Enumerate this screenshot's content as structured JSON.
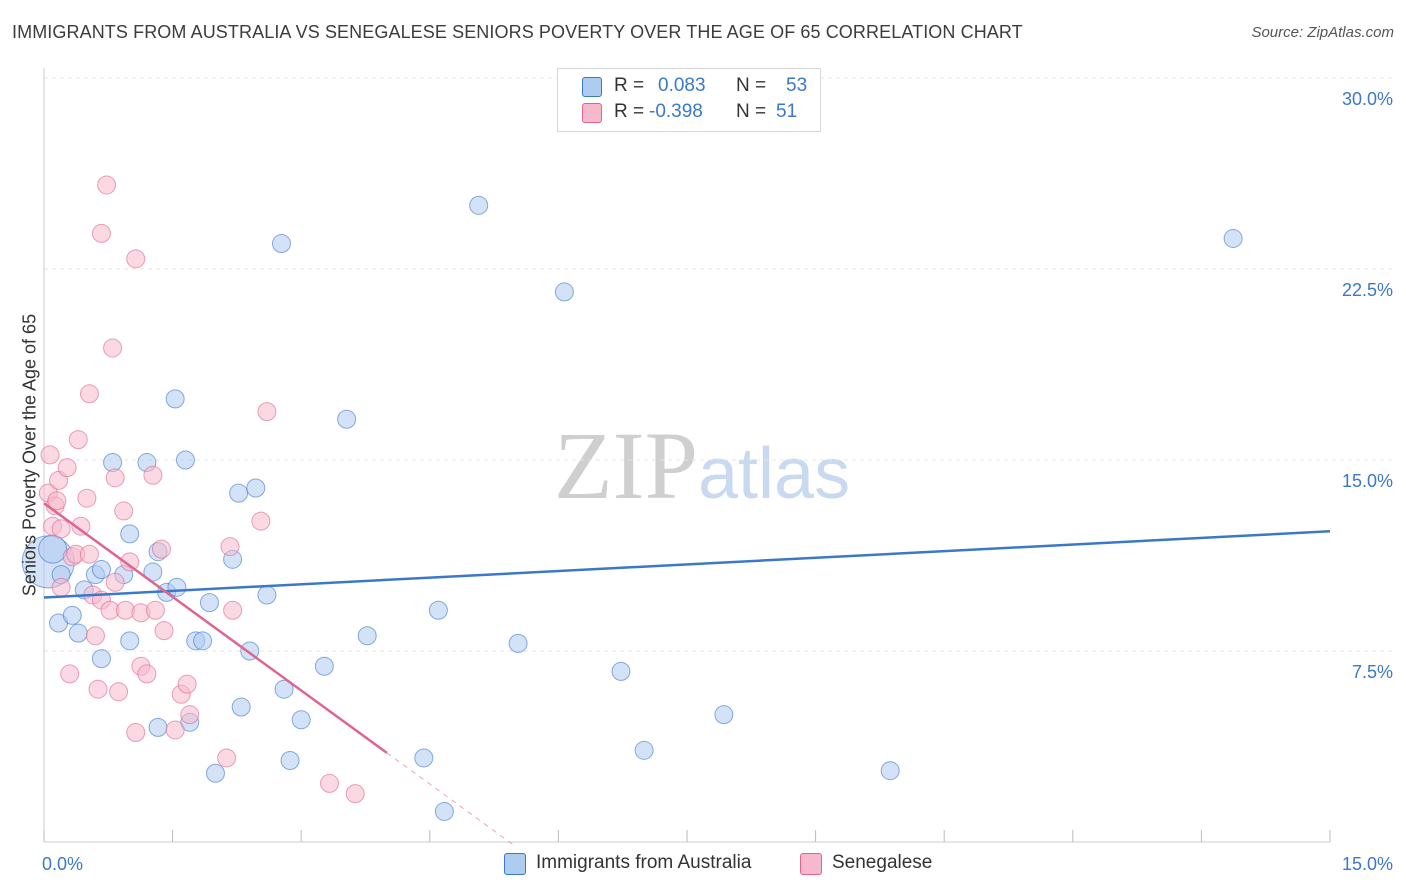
{
  "header": {
    "title": "IMMIGRANTS FROM AUSTRALIA VS SENEGALESE SENIORS POVERTY OVER THE AGE OF 65 CORRELATION CHART",
    "source": "Source: ZipAtlas.com"
  },
  "watermark": {
    "zip": "ZIP",
    "atlas": "atlas"
  },
  "legend": {
    "rows": [
      {
        "r_label": "R =",
        "r_value": "0.083",
        "n_label": "N =",
        "n_value": "53"
      },
      {
        "r_label": "R =",
        "r_value": "-0.398",
        "n_label": "N =",
        "n_value": "51"
      }
    ]
  },
  "chart_data": {
    "type": "scatter",
    "title": "IMMIGRANTS FROM AUSTRALIA VS SENEGALESE SENIORS POVERTY OVER THE AGE OF 65 CORRELATION CHART",
    "xlabel": "",
    "ylabel": "Seniors Poverty Over the Age of 65",
    "xlim": [
      0,
      15
    ],
    "ylim": [
      0,
      30
    ],
    "x_tick_labels": [
      "0.0%",
      "15.0%"
    ],
    "y_ticks": [
      7.5,
      15.0,
      22.5,
      30.0
    ],
    "y_tick_labels": [
      "7.5%",
      "15.0%",
      "22.5%",
      "30.0%"
    ],
    "colors": {
      "blue": "#3b78c9",
      "blue_fill": "#aecbf0",
      "pink": "#e0648f",
      "pink_fill": "#f6b9cc",
      "tick_text": "#3b78c9"
    },
    "series": [
      {
        "name": "Immigrants from Australia",
        "r": 0.083,
        "n": 53,
        "trend": {
          "x": [
            0,
            15
          ],
          "y": [
            9.6,
            12.2
          ]
        },
        "points": [
          [
            0.05,
            11.0,
            26
          ],
          [
            0.1,
            11.5,
            14
          ],
          [
            0.2,
            10.5,
            9
          ],
          [
            0.17,
            8.6,
            9
          ],
          [
            0.33,
            8.9,
            9
          ],
          [
            0.4,
            8.2,
            9
          ],
          [
            0.47,
            9.9,
            9
          ],
          [
            0.6,
            10.5,
            9
          ],
          [
            0.67,
            10.7,
            9
          ],
          [
            0.67,
            7.2,
            9
          ],
          [
            0.8,
            14.9,
            9
          ],
          [
            0.93,
            10.5,
            9
          ],
          [
            1.0,
            12.1,
            9
          ],
          [
            1.0,
            7.9,
            9
          ],
          [
            1.2,
            14.9,
            9
          ],
          [
            1.27,
            10.6,
            9
          ],
          [
            1.33,
            4.5,
            9
          ],
          [
            1.33,
            11.4,
            9
          ],
          [
            1.43,
            9.8,
            9
          ],
          [
            1.53,
            17.4,
            9
          ],
          [
            1.55,
            10.0,
            9
          ],
          [
            1.65,
            15.0,
            9
          ],
          [
            1.7,
            4.7,
            9
          ],
          [
            1.77,
            7.9,
            9
          ],
          [
            1.85,
            7.9,
            9
          ],
          [
            1.93,
            9.4,
            9
          ],
          [
            2.0,
            2.7,
            9
          ],
          [
            2.2,
            11.1,
            9
          ],
          [
            2.27,
            13.7,
            9
          ],
          [
            2.3,
            5.3,
            9
          ],
          [
            2.4,
            7.5,
            9
          ],
          [
            2.47,
            13.9,
            9
          ],
          [
            2.6,
            9.7,
            9
          ],
          [
            2.77,
            23.5,
            9
          ],
          [
            2.8,
            6.0,
            9
          ],
          [
            2.87,
            3.2,
            9
          ],
          [
            3.0,
            4.8,
            9
          ],
          [
            3.27,
            6.9,
            9
          ],
          [
            3.53,
            16.6,
            9
          ],
          [
            3.77,
            8.1,
            9
          ],
          [
            4.43,
            3.3,
            9
          ],
          [
            4.6,
            9.1,
            9
          ],
          [
            4.67,
            1.2,
            9
          ],
          [
            5.07,
            25.0,
            9
          ],
          [
            5.53,
            7.8,
            9
          ],
          [
            6.07,
            21.6,
            9
          ],
          [
            6.73,
            6.7,
            9
          ],
          [
            7.0,
            3.6,
            9
          ],
          [
            7.93,
            5.0,
            9
          ],
          [
            9.87,
            2.8,
            9
          ],
          [
            13.87,
            23.7,
            9
          ]
        ]
      },
      {
        "name": "Senegalese",
        "r": -0.398,
        "n": 51,
        "trend": {
          "x": [
            0,
            4.0
          ],
          "y": [
            13.3,
            3.5
          ]
        },
        "trend_dashed": {
          "x": [
            4.0,
            5.47
          ],
          "y": [
            3.5,
            -0.1
          ]
        },
        "points": [
          [
            0.05,
            13.7,
            9
          ],
          [
            0.07,
            15.2,
            9
          ],
          [
            0.1,
            12.4,
            9
          ],
          [
            0.13,
            13.2,
            9
          ],
          [
            0.15,
            13.4,
            9
          ],
          [
            0.17,
            14.2,
            9
          ],
          [
            0.2,
            12.3,
            9
          ],
          [
            0.2,
            10.0,
            9
          ],
          [
            0.27,
            14.7,
            9
          ],
          [
            0.3,
            6.6,
            9
          ],
          [
            0.33,
            11.2,
            9
          ],
          [
            0.37,
            11.3,
            9
          ],
          [
            0.4,
            15.8,
            9
          ],
          [
            0.43,
            12.4,
            9
          ],
          [
            0.5,
            13.5,
            9
          ],
          [
            0.53,
            17.6,
            9
          ],
          [
            0.53,
            11.3,
            9
          ],
          [
            0.57,
            9.7,
            9
          ],
          [
            0.6,
            8.1,
            9
          ],
          [
            0.63,
            6.0,
            9
          ],
          [
            0.67,
            23.9,
            9
          ],
          [
            0.67,
            9.5,
            9
          ],
          [
            0.73,
            25.8,
            9
          ],
          [
            0.77,
            9.1,
            9
          ],
          [
            0.8,
            19.4,
            9
          ],
          [
            0.83,
            14.3,
            9
          ],
          [
            0.83,
            10.2,
            9
          ],
          [
            0.87,
            5.9,
            9
          ],
          [
            0.93,
            13.0,
            9
          ],
          [
            0.95,
            9.1,
            9
          ],
          [
            1.0,
            11.0,
            9
          ],
          [
            1.07,
            22.9,
            9
          ],
          [
            1.07,
            4.3,
            9
          ],
          [
            1.13,
            9.0,
            9
          ],
          [
            1.13,
            6.9,
            9
          ],
          [
            1.2,
            6.6,
            9
          ],
          [
            1.27,
            14.4,
            9
          ],
          [
            1.3,
            9.1,
            9
          ],
          [
            1.37,
            11.5,
            9
          ],
          [
            1.4,
            8.3,
            9
          ],
          [
            1.53,
            4.4,
            9
          ],
          [
            1.6,
            5.8,
            9
          ],
          [
            1.67,
            6.2,
            9
          ],
          [
            1.7,
            5.0,
            9
          ],
          [
            2.13,
            3.3,
            9
          ],
          [
            2.17,
            11.6,
            9
          ],
          [
            2.2,
            9.1,
            9
          ],
          [
            2.53,
            12.6,
            9
          ],
          [
            2.6,
            16.9,
            9
          ],
          [
            3.33,
            2.3,
            9
          ],
          [
            3.63,
            1.9,
            9
          ]
        ]
      }
    ]
  },
  "bottom_legend": {
    "items": [
      "Immigrants from Australia",
      "Senegalese"
    ]
  }
}
